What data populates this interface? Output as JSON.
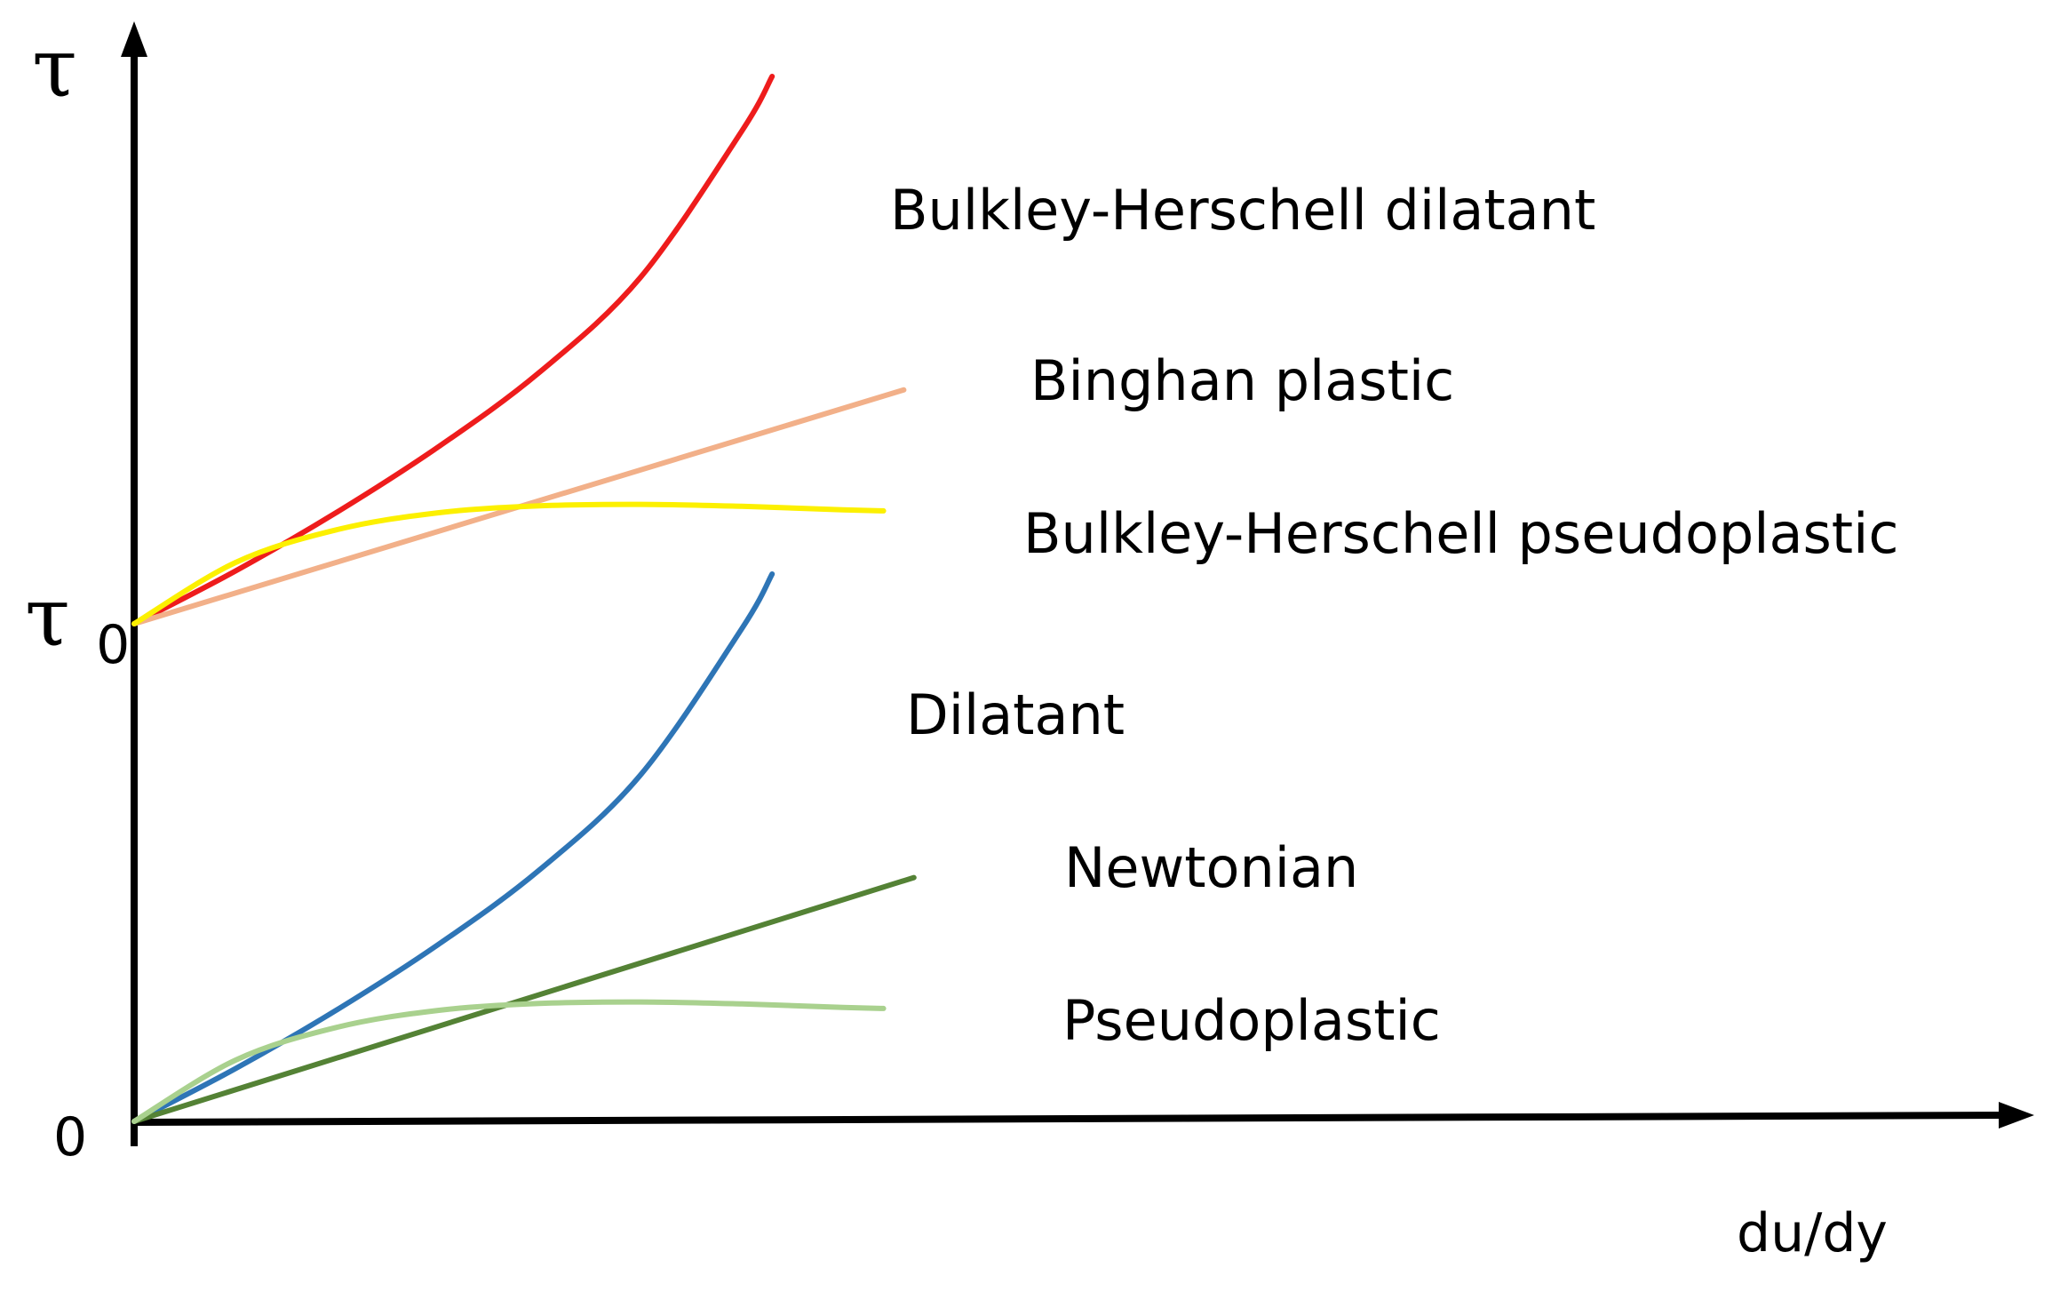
{
  "chart_data": {
    "type": "line",
    "title": "",
    "xlabel": "du/dy",
    "ylabel": "τ",
    "y_ticks": [
      {
        "value": 0,
        "main": "0",
        "sub": ""
      },
      {
        "value": 1,
        "main": "τ",
        "sub": "0"
      }
    ],
    "xlim": [
      0,
      10
    ],
    "ylim": [
      0,
      2.15
    ],
    "grid": false,
    "legend": "inline labels at line ends",
    "series": [
      {
        "name": "Bulkley-Herschell dilatant",
        "color": "#ee1c1c",
        "points": [
          [
            0,
            1.0
          ],
          [
            1,
            1.106
          ],
          [
            2,
            1.224
          ],
          [
            3,
            1.355
          ],
          [
            4,
            1.505
          ],
          [
            5,
            1.696
          ],
          [
            6,
            1.99
          ],
          [
            6.3,
            2.1
          ]
        ]
      },
      {
        "name": "Binghan plastic",
        "color": "#f2b089",
        "points": [
          [
            0,
            1.0
          ],
          [
            7.6,
            1.47
          ]
        ]
      },
      {
        "name": "Bulkley-Herschell pseudoplastic",
        "color": "#fcf000",
        "points": [
          [
            0,
            1.0
          ],
          [
            1,
            1.123
          ],
          [
            2,
            1.189
          ],
          [
            3,
            1.223
          ],
          [
            4,
            1.237
          ],
          [
            5,
            1.24
          ],
          [
            6,
            1.236
          ],
          [
            7,
            1.229
          ],
          [
            7.4,
            1.227
          ]
        ]
      },
      {
        "name": "Dilatant",
        "color": "#2e75b6",
        "points": [
          [
            0,
            0.0
          ],
          [
            1,
            0.106
          ],
          [
            2,
            0.224
          ],
          [
            3,
            0.355
          ],
          [
            4,
            0.505
          ],
          [
            5,
            0.696
          ],
          [
            6,
            0.99
          ],
          [
            6.3,
            1.1
          ]
        ]
      },
      {
        "name": "Newtonian",
        "color": "#548235",
        "points": [
          [
            0,
            0.0
          ],
          [
            7.7,
            0.49
          ]
        ]
      },
      {
        "name": "Pseudoplastic",
        "color": "#a9d18e",
        "points": [
          [
            0,
            0.0
          ],
          [
            1,
            0.123
          ],
          [
            2,
            0.189
          ],
          [
            3,
            0.223
          ],
          [
            4,
            0.237
          ],
          [
            5,
            0.24
          ],
          [
            6,
            0.236
          ],
          [
            7,
            0.229
          ],
          [
            7.4,
            0.227
          ]
        ]
      }
    ]
  }
}
